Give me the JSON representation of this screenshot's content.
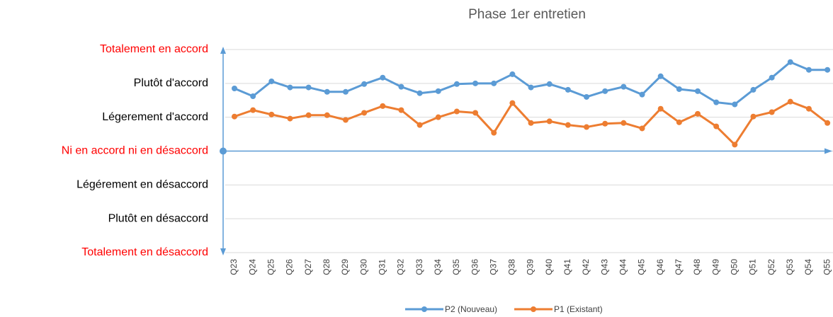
{
  "chart_data": {
    "type": "line",
    "title": "Phase 1er entretien",
    "categories": [
      "Q23",
      "Q24",
      "Q25",
      "Q26",
      "Q27",
      "Q28",
      "Q29",
      "Q30",
      "Q31",
      "Q32",
      "Q33",
      "Q34",
      "Q35",
      "Q36",
      "Q37",
      "Q38",
      "Q39",
      "Q40",
      "Q41",
      "Q42",
      "Q43",
      "Q44",
      "Q45",
      "Q46",
      "Q47",
      "Q48",
      "Q49",
      "Q50",
      "Q51",
      "Q52",
      "Q53",
      "Q54",
      "Q55"
    ],
    "series": [
      {
        "name": "P2 (Nouveau)",
        "color": "#5b9bd5",
        "values": [
          1.85,
          1.62,
          2.06,
          1.88,
          1.88,
          1.75,
          1.75,
          1.98,
          2.17,
          1.9,
          1.71,
          1.77,
          1.98,
          2.0,
          2.0,
          2.27,
          1.88,
          1.98,
          1.81,
          1.6,
          1.77,
          1.9,
          1.67,
          2.21,
          1.83,
          1.77,
          1.44,
          1.38,
          1.81,
          2.17,
          2.63,
          2.4,
          2.4
        ]
      },
      {
        "name": "P1 (Existant)",
        "color": "#ed7d31",
        "values": [
          1.02,
          1.21,
          1.08,
          0.96,
          1.06,
          1.06,
          0.92,
          1.13,
          1.33,
          1.21,
          0.77,
          1.0,
          1.17,
          1.13,
          0.54,
          1.42,
          0.83,
          0.88,
          0.77,
          0.71,
          0.81,
          0.83,
          0.67,
          1.25,
          0.85,
          1.1,
          0.73,
          0.19,
          1.02,
          1.15,
          1.46,
          1.25,
          0.83
        ]
      }
    ],
    "ylim": [
      -3,
      3
    ],
    "yticks": [
      {
        "value": 3,
        "label": "Totalement en accord"
      },
      {
        "value": 2,
        "label": "Plutôt d'accord"
      },
      {
        "value": 1,
        "label": "Légerement d'accord"
      },
      {
        "value": 0,
        "label": "Ni en accord ni en désaccord"
      },
      {
        "value": -1,
        "label": "Légérement en désaccord"
      },
      {
        "value": -2,
        "label": "Plutôt en désaccord"
      },
      {
        "value": -3,
        "label": "Totalement en désaccord"
      }
    ],
    "ytick_colors": [
      "#ff0000",
      "#000000",
      "#000000",
      "#ff0000",
      "#000000",
      "#000000",
      "#ff0000"
    ],
    "grid": true,
    "axis_color": "#5b9bd5",
    "legend": "bottom"
  }
}
